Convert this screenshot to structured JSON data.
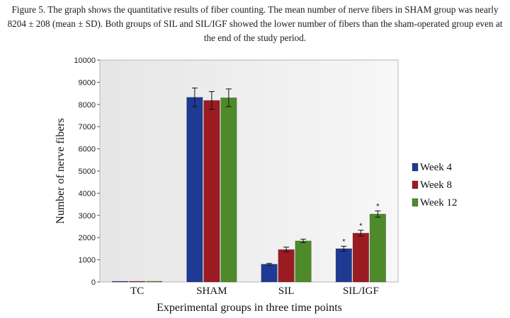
{
  "caption": "Figure 5. The graph shows the quantitative results of fiber counting. The mean number of nerve fibers in SHAM group was nearly 8204 ± 208 (mean ± SD). Both groups of SIL and SIL/IGF showed the lower number of fibers than the sham-operated group even at the end of the study period.",
  "chart_data": {
    "type": "bar",
    "title": "",
    "xlabel": "Experimental groups in three time points",
    "ylabel": "Number of nerve fibers",
    "ylim": [
      0,
      10000
    ],
    "yticks": [
      0,
      1000,
      2000,
      3000,
      4000,
      5000,
      6000,
      7000,
      8000,
      9000,
      10000
    ],
    "grid": false,
    "legend_position": "right",
    "categories": [
      "TC",
      "SHAM",
      "SIL",
      "SIL/IGF"
    ],
    "series": [
      {
        "name": "Week 4",
        "color": "#1f3a93",
        "values": [
          30,
          8320,
          800,
          1500
        ],
        "errors": [
          0,
          420,
          40,
          110
        ],
        "significant": [
          false,
          false,
          false,
          true
        ]
      },
      {
        "name": "Week 8",
        "color": "#9b1b22",
        "values": [
          30,
          8180,
          1460,
          2200
        ],
        "errors": [
          0,
          400,
          110,
          130
        ],
        "significant": [
          false,
          false,
          false,
          true
        ]
      },
      {
        "name": "Week 12",
        "color": "#4f8a2a",
        "values": [
          30,
          8300,
          1850,
          3060
        ],
        "errors": [
          0,
          400,
          80,
          140
        ],
        "significant": [
          false,
          false,
          false,
          true
        ]
      }
    ],
    "significance_marker": "*"
  }
}
